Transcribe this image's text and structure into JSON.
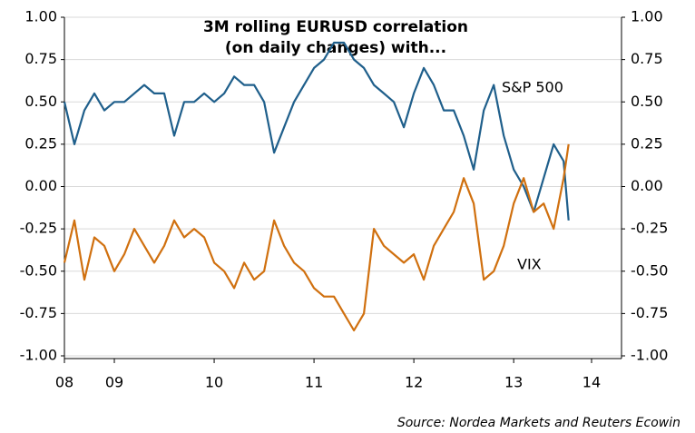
{
  "chart_data": {
    "type": "line",
    "title": "3M rolling EURUSD correlation",
    "subtitle": "(on daily changes) with...",
    "source": "Source: Nordea Markets and Reuters Ecowin",
    "x": [
      2008.5,
      2008.6,
      2008.7,
      2008.8,
      2008.9,
      2009.0,
      2009.1,
      2009.2,
      2009.3,
      2009.4,
      2009.5,
      2009.6,
      2009.7,
      2009.8,
      2009.9,
      2010.0,
      2010.1,
      2010.2,
      2010.3,
      2010.4,
      2010.5,
      2010.6,
      2010.7,
      2010.8,
      2010.9,
      2011.0,
      2011.1,
      2011.2,
      2011.3,
      2011.4,
      2011.5,
      2011.6,
      2011.7,
      2011.8,
      2011.9,
      2012.0,
      2012.1,
      2012.2,
      2012.3,
      2012.4,
      2012.5,
      2012.6,
      2012.7,
      2012.8,
      2012.9,
      2013.0,
      2013.1,
      2013.2,
      2013.3,
      2013.4,
      2013.5,
      2013.55
    ],
    "series": [
      {
        "name": "S&P 500",
        "color": "#1f5f8b",
        "values": [
          0.5,
          0.25,
          0.45,
          0.55,
          0.45,
          0.5,
          0.5,
          0.55,
          0.6,
          0.55,
          0.55,
          0.3,
          0.5,
          0.5,
          0.55,
          0.5,
          0.55,
          0.65,
          0.6,
          0.6,
          0.5,
          0.2,
          0.35,
          0.5,
          0.6,
          0.7,
          0.75,
          0.85,
          0.85,
          0.75,
          0.7,
          0.6,
          0.55,
          0.5,
          0.35,
          0.55,
          0.7,
          0.6,
          0.45,
          0.45,
          0.3,
          0.1,
          0.45,
          0.6,
          0.3,
          0.1,
          0.0,
          -0.15,
          0.05,
          0.25,
          0.15,
          -0.2
        ]
      },
      {
        "name": "VIX",
        "color": "#d0700f",
        "values": [
          -0.45,
          -0.2,
          -0.55,
          -0.3,
          -0.35,
          -0.5,
          -0.4,
          -0.25,
          -0.35,
          -0.45,
          -0.35,
          -0.2,
          -0.3,
          -0.25,
          -0.3,
          -0.45,
          -0.5,
          -0.6,
          -0.45,
          -0.55,
          -0.5,
          -0.2,
          -0.35,
          -0.45,
          -0.5,
          -0.6,
          -0.65,
          -0.65,
          -0.75,
          -0.85,
          -0.75,
          -0.25,
          -0.35,
          -0.4,
          -0.45,
          -0.4,
          -0.55,
          -0.35,
          -0.25,
          -0.15,
          0.05,
          -0.1,
          -0.55,
          -0.5,
          -0.35,
          -0.1,
          0.05,
          -0.15,
          -0.1,
          -0.25,
          0.05,
          0.25
        ]
      }
    ],
    "xlim": [
      2008.5,
      2014.08
    ],
    "xticks": [
      {
        "value": 2008.5,
        "label": "08"
      },
      {
        "value": 2009,
        "label": "09"
      },
      {
        "value": 2010,
        "label": "10"
      },
      {
        "value": 2011,
        "label": "11"
      },
      {
        "value": 2012,
        "label": "12"
      },
      {
        "value": 2013,
        "label": "13"
      },
      {
        "value": 2013.78,
        "label": "14"
      }
    ],
    "ylim": [
      -1,
      1
    ],
    "yticks": [
      {
        "value": 1,
        "label": "1.00"
      },
      {
        "value": 0.75,
        "label": "0.75"
      },
      {
        "value": 0.5,
        "label": "0.50"
      },
      {
        "value": 0.25,
        "label": "0.25"
      },
      {
        "value": 0,
        "label": "0.00"
      },
      {
        "value": -0.25,
        "label": "-0.25"
      },
      {
        "value": -0.5,
        "label": "-0.50"
      },
      {
        "value": -0.75,
        "label": "-0.75"
      },
      {
        "value": -1,
        "label": "-1.00"
      }
    ],
    "y2lim": [
      -1,
      1
    ],
    "y2ticks": [
      {
        "value": 1,
        "label": "1.00"
      },
      {
        "value": 0.75,
        "label": "0.75"
      },
      {
        "value": 0.5,
        "label": "0.50"
      },
      {
        "value": 0.25,
        "label": "0.25"
      },
      {
        "value": 0,
        "label": "0.00"
      },
      {
        "value": -0.25,
        "label": "-0.25"
      },
      {
        "value": -0.5,
        "label": "-0.50"
      },
      {
        "value": -0.75,
        "label": "-0.75"
      },
      {
        "value": -1,
        "label": "-1.00"
      }
    ],
    "grid": true
  }
}
